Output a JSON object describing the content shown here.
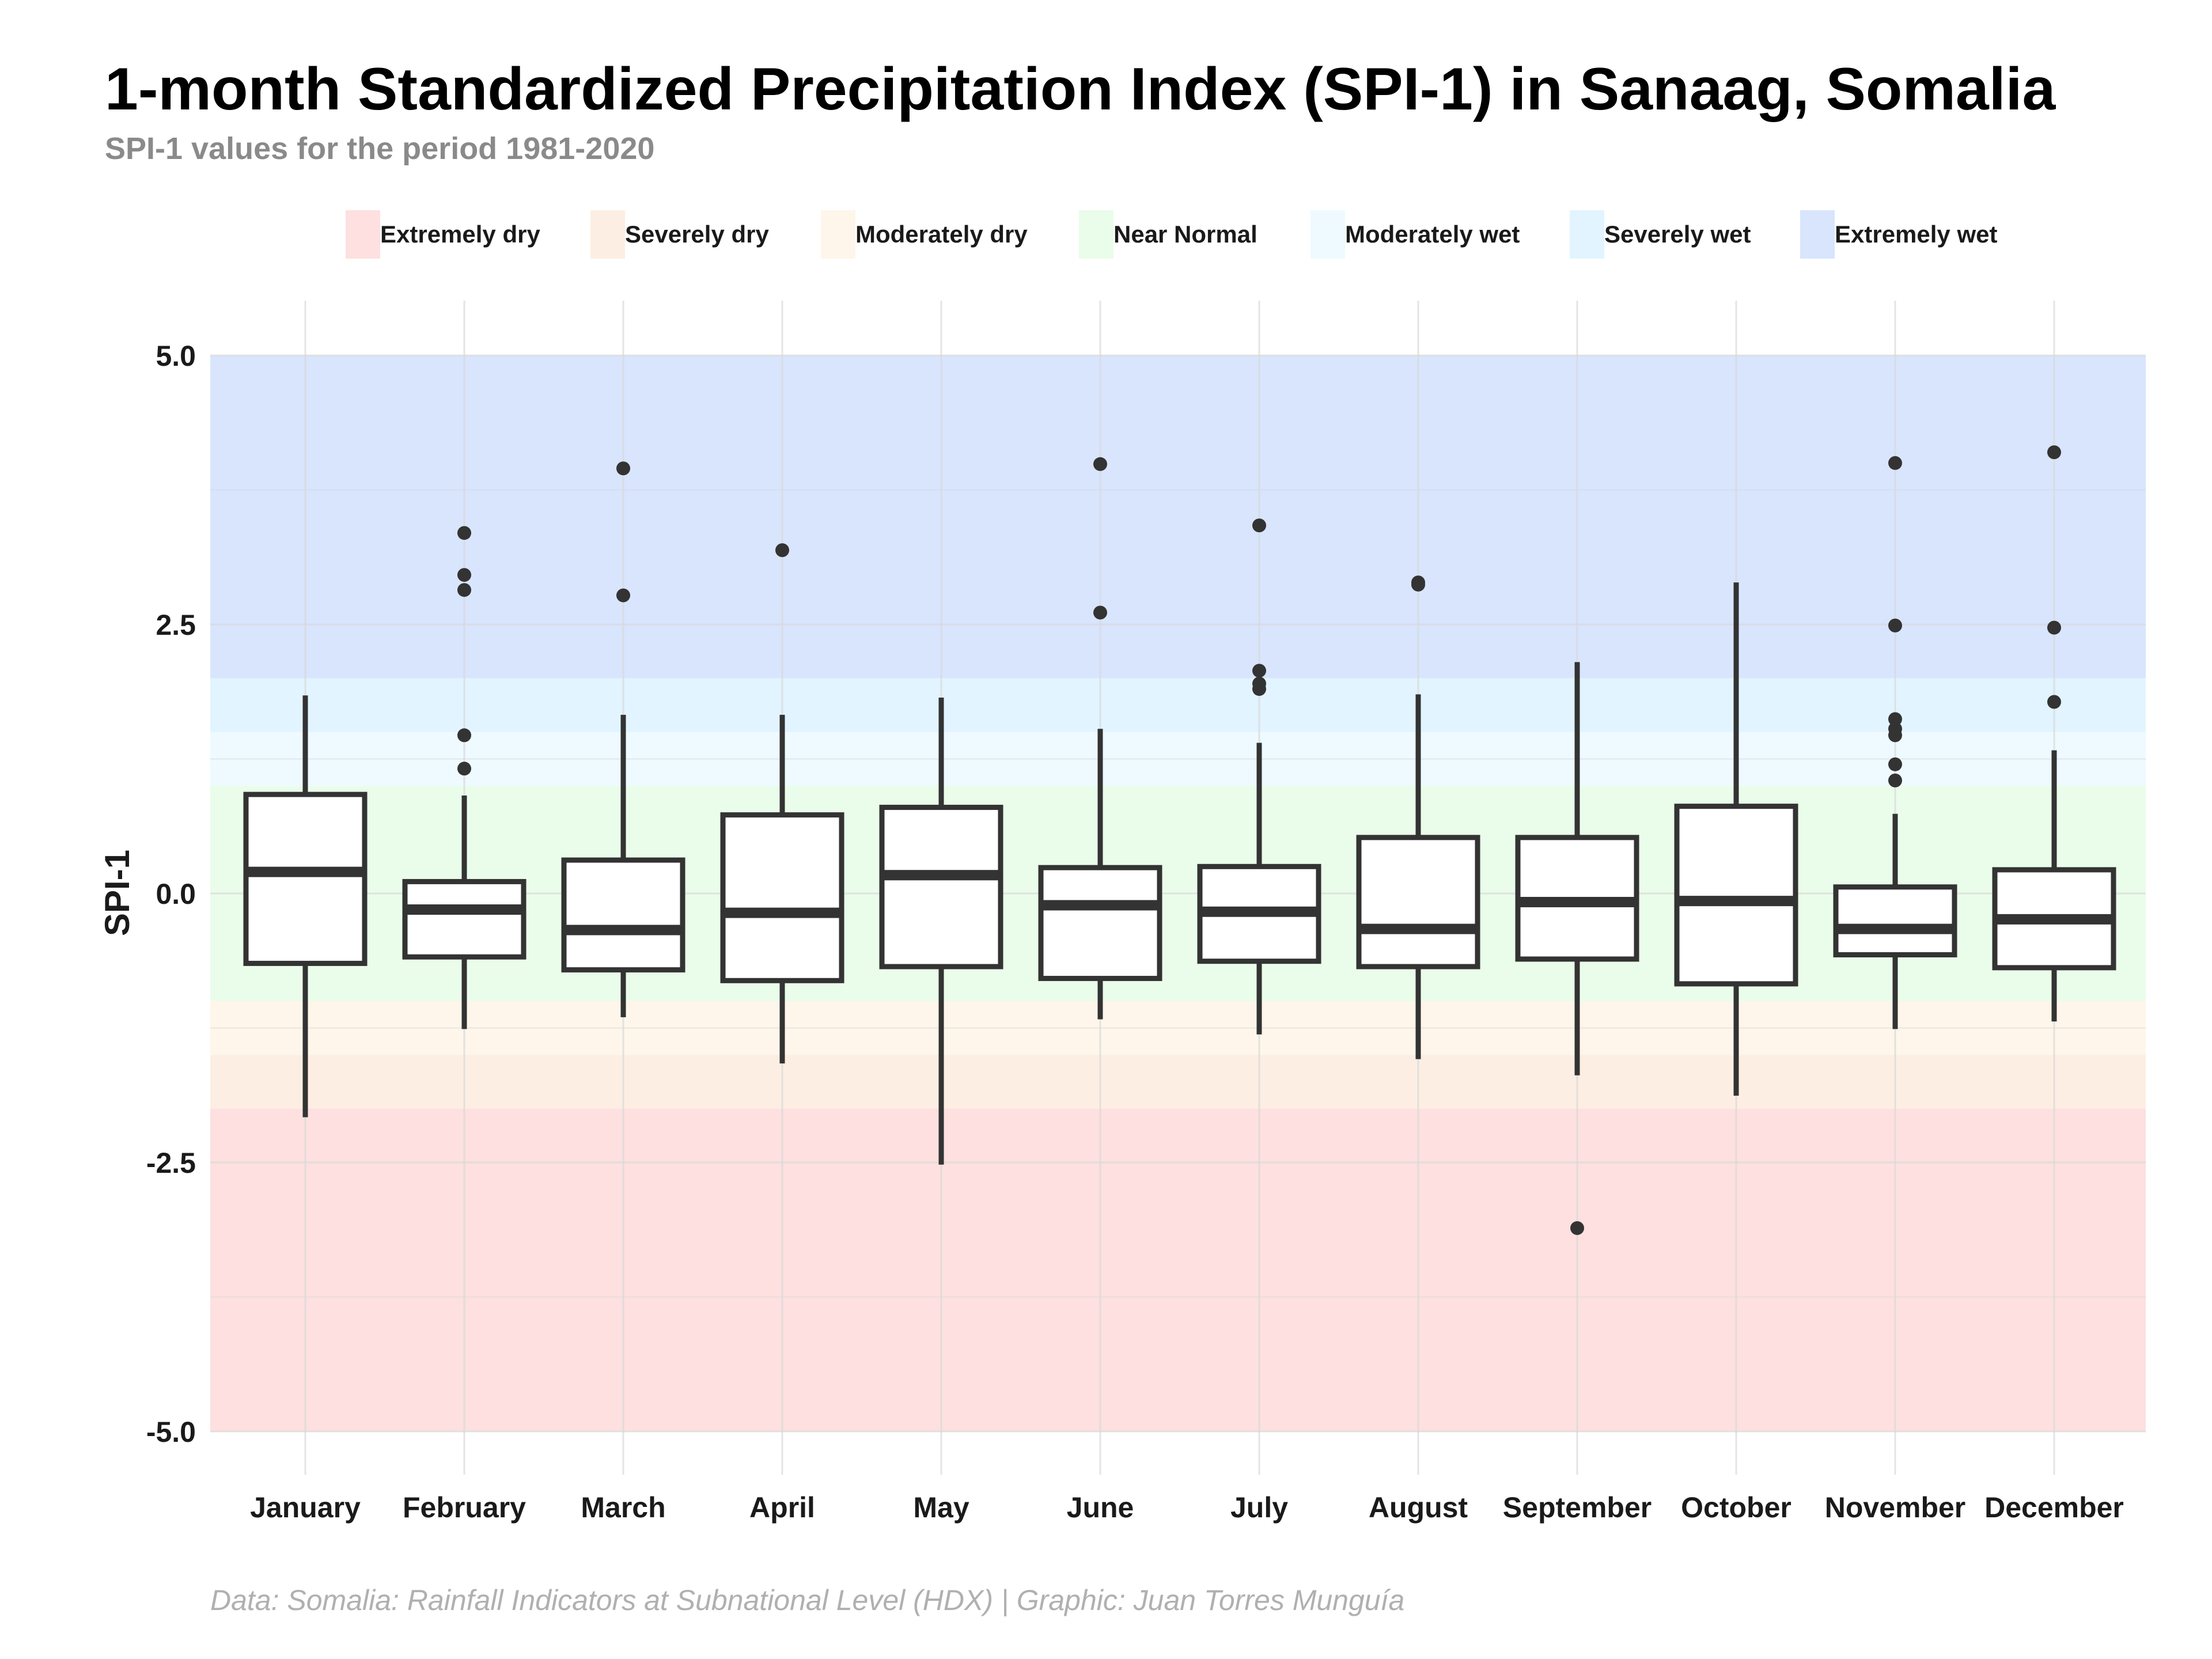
{
  "title": "1-month Standardized Precipitation Index (SPI-1) in Sanaag, Somalia",
  "subtitle": "SPI-1 values for the period 1981-2020",
  "caption": "Data: Somalia: Rainfall Indicators at Subnational Level (HDX) | Graphic: Juan Torres Munguía",
  "legend": [
    {
      "label": "Extremely dry",
      "color": "#fde0df"
    },
    {
      "label": "Severely dry",
      "color": "#fdeee3"
    },
    {
      "label": "Moderately dry",
      "color": "#fef6ea"
    },
    {
      "label": "Near Normal",
      "color": "#eafcea"
    },
    {
      "label": "Moderately wet",
      "color": "#eefaff"
    },
    {
      "label": "Severely wet",
      "color": "#e2f4ff"
    },
    {
      "label": "Extremely wet",
      "color": "#d8e5fd"
    }
  ],
  "chart_data": {
    "type": "boxplot",
    "title": "1-month Standardized Precipitation Index (SPI-1) in Sanaag, Somalia",
    "subtitle": "SPI-1 values for the period 1981-2020",
    "xlabel": "",
    "ylabel": "SPI-1",
    "ylim": [
      -5.0,
      5.0
    ],
    "y_ticks": [
      5.0,
      2.5,
      0.0,
      -2.5,
      -5.0
    ],
    "y_tick_labels": [
      "5.0",
      "2.5",
      "0.0",
      "-2.5",
      "-5.0"
    ],
    "legend_position": "top",
    "grid": true,
    "bands": [
      {
        "label": "Extremely dry",
        "from": -5.0,
        "to": -2.0,
        "color": "#fde0df"
      },
      {
        "label": "Severely dry",
        "from": -2.0,
        "to": -1.5,
        "color": "#fdeee3"
      },
      {
        "label": "Moderately dry",
        "from": -1.5,
        "to": -1.0,
        "color": "#fef6ea"
      },
      {
        "label": "Near Normal",
        "from": -1.0,
        "to": 1.0,
        "color": "#eafcea"
      },
      {
        "label": "Moderately wet",
        "from": 1.0,
        "to": 1.5,
        "color": "#eefaff"
      },
      {
        "label": "Severely wet",
        "from": 1.5,
        "to": 2.0,
        "color": "#e2f4ff"
      },
      {
        "label": "Extremely wet",
        "from": 2.0,
        "to": 5.0,
        "color": "#d8e5fd"
      }
    ],
    "categories": [
      "January",
      "February",
      "March",
      "April",
      "May",
      "June",
      "July",
      "August",
      "September",
      "October",
      "November",
      "December"
    ],
    "boxes": [
      {
        "month": "January",
        "min": -2.08,
        "q1": -0.65,
        "median": 0.2,
        "q3": 0.92,
        "max": 1.84,
        "outliers": []
      },
      {
        "month": "February",
        "min": -1.26,
        "q1": -0.59,
        "median": -0.15,
        "q3": 0.11,
        "max": 0.91,
        "outliers": [
          3.35,
          2.96,
          2.82,
          1.47,
          1.16
        ]
      },
      {
        "month": "March",
        "min": -1.15,
        "q1": -0.71,
        "median": -0.34,
        "q3": 0.31,
        "max": 1.66,
        "outliers": [
          3.95,
          2.77
        ]
      },
      {
        "month": "April",
        "min": -1.58,
        "q1": -0.81,
        "median": -0.18,
        "q3": 0.73,
        "max": 1.66,
        "outliers": [
          3.19
        ]
      },
      {
        "month": "May",
        "min": -2.52,
        "q1": -0.68,
        "median": 0.17,
        "q3": 0.8,
        "max": 1.82,
        "outliers": []
      },
      {
        "month": "June",
        "min": -1.17,
        "q1": -0.79,
        "median": -0.11,
        "q3": 0.24,
        "max": 1.53,
        "outliers": [
          3.99,
          2.61
        ]
      },
      {
        "month": "July",
        "min": -1.31,
        "q1": -0.63,
        "median": -0.17,
        "q3": 0.25,
        "max": 1.4,
        "outliers": [
          3.42,
          2.07,
          1.95,
          1.9
        ]
      },
      {
        "month": "August",
        "min": -1.54,
        "q1": -0.68,
        "median": -0.33,
        "q3": 0.52,
        "max": 1.85,
        "outliers": [
          2.89,
          2.87
        ]
      },
      {
        "month": "September",
        "min": -1.69,
        "q1": -0.61,
        "median": -0.08,
        "q3": 0.52,
        "max": 2.15,
        "outliers": [
          -3.11
        ]
      },
      {
        "month": "October",
        "min": -1.88,
        "q1": -0.84,
        "median": -0.07,
        "q3": 0.81,
        "max": 2.89,
        "outliers": []
      },
      {
        "month": "November",
        "min": -1.26,
        "q1": -0.57,
        "median": -0.33,
        "q3": 0.06,
        "max": 0.74,
        "outliers": [
          4.0,
          2.49,
          1.62,
          1.53,
          1.47,
          1.2,
          1.05
        ]
      },
      {
        "month": "December",
        "min": -1.19,
        "q1": -0.69,
        "median": -0.24,
        "q3": 0.22,
        "max": 1.33,
        "outliers": [
          4.1,
          2.47,
          1.78
        ]
      }
    ]
  }
}
